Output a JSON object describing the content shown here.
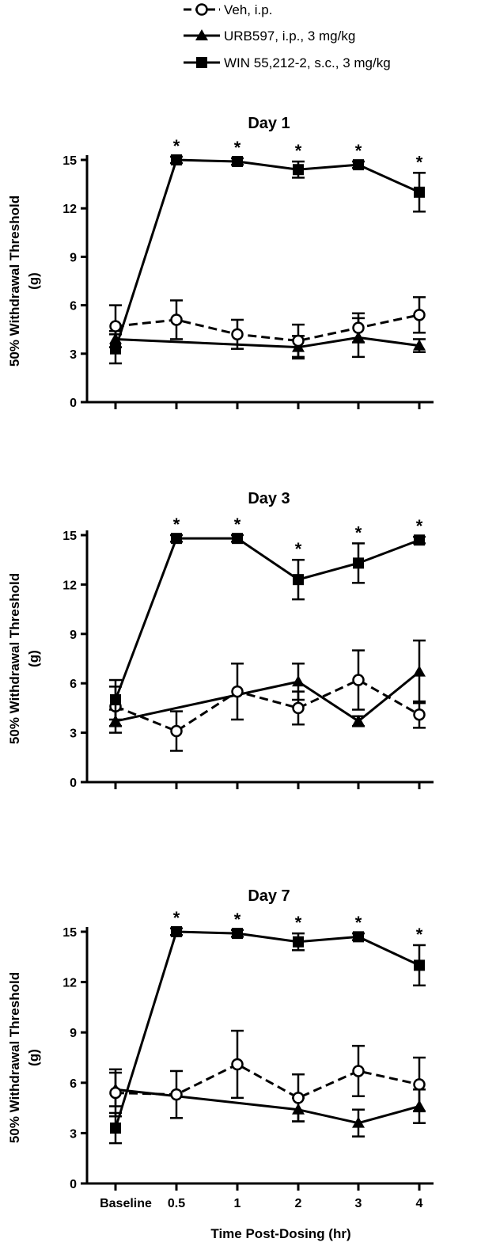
{
  "legend": [
    {
      "label": "Veh, i.p.",
      "marker": "open-circle",
      "dash": true
    },
    {
      "label": "URB597, i.p., 3 mg/kg",
      "marker": "filled-triangle",
      "dash": false
    },
    {
      "label": "WIN 55,212-2, s.c., 3 mg/kg",
      "marker": "filled-square",
      "dash": false
    }
  ],
  "ylabel_line1": "50% Withdrawal Threshold",
  "ylabel_line2": "(g)",
  "xlabel": "Time Post-Dosing (hr)",
  "chart_data": [
    {
      "type": "line",
      "title": "Day 1",
      "categories": [
        "Baseline",
        "0.5",
        "1",
        "2",
        "3",
        "4"
      ],
      "ylim": [
        0,
        15
      ],
      "yticks": [
        0,
        3,
        6,
        9,
        12,
        15
      ],
      "series": [
        {
          "name": "Veh, i.p.",
          "values": [
            4.7,
            5.1,
            4.2,
            3.8,
            4.6,
            5.4
          ],
          "errors": [
            1.3,
            1.2,
            0.9,
            1.0,
            0.9,
            1.1
          ]
        },
        {
          "name": "URB597, i.p., 3 mg/kg",
          "values": [
            3.9,
            null,
            null,
            3.4,
            4.0,
            3.5
          ],
          "errors": [
            0.5,
            null,
            null,
            0.7,
            1.2,
            0.4
          ]
        },
        {
          "name": "WIN 55,212-2, s.c., 3 mg/kg",
          "values": [
            3.3,
            15.0,
            14.9,
            14.4,
            14.7,
            13.0
          ],
          "errors": [
            0.9,
            0.2,
            0.2,
            0.5,
            0.2,
            1.2
          ]
        }
      ],
      "significance": [
        "",
        "*",
        "*",
        "*",
        "*",
        "*"
      ]
    },
    {
      "type": "line",
      "title": "Day 3",
      "categories": [
        "Baseline",
        "0.5",
        "1",
        "2",
        "3",
        "4"
      ],
      "ylim": [
        0,
        15
      ],
      "yticks": [
        0,
        3,
        6,
        9,
        12,
        15
      ],
      "series": [
        {
          "name": "Veh, i.p.",
          "values": [
            4.6,
            3.1,
            5.5,
            4.5,
            6.2,
            4.1
          ],
          "errors": [
            1.2,
            1.2,
            1.7,
            1.0,
            1.8,
            0.8
          ]
        },
        {
          "name": "URB597, i.p., 3 mg/kg",
          "values": [
            3.7,
            null,
            null,
            6.1,
            3.7,
            6.7
          ],
          "errors": [
            0.7,
            null,
            null,
            1.1,
            0.3,
            1.9
          ]
        },
        {
          "name": "WIN 55,212-2, s.c., 3 mg/kg",
          "values": [
            5.0,
            14.8,
            14.8,
            12.3,
            13.3,
            14.7
          ],
          "errors": [
            1.2,
            0.2,
            0.2,
            1.2,
            1.2,
            0.2
          ]
        }
      ],
      "significance": [
        "",
        "*",
        "*",
        "*",
        "*",
        "*"
      ]
    },
    {
      "type": "line",
      "title": "Day 7",
      "categories": [
        "Baseline",
        "0.5",
        "1",
        "2",
        "3",
        "4"
      ],
      "ylim": [
        0,
        15
      ],
      "yticks": [
        0,
        3,
        6,
        9,
        12,
        15
      ],
      "series": [
        {
          "name": "Veh, i.p.",
          "values": [
            5.4,
            5.3,
            7.1,
            5.1,
            6.7,
            5.9
          ],
          "errors": [
            1.4,
            1.4,
            2.0,
            1.4,
            1.5,
            1.6
          ]
        },
        {
          "name": "URB597, i.p., 3 mg/kg",
          "values": [
            5.6,
            null,
            null,
            4.4,
            3.6,
            4.6
          ],
          "errors": [
            1.0,
            null,
            null,
            0.7,
            0.8,
            1.0
          ]
        },
        {
          "name": "WIN 55,212-2, s.c., 3 mg/kg",
          "values": [
            3.3,
            15.0,
            14.9,
            14.4,
            14.7,
            13.0
          ],
          "errors": [
            0.9,
            0.2,
            0.2,
            0.5,
            0.2,
            1.2
          ]
        }
      ],
      "significance": [
        "",
        "*",
        "*",
        "*",
        "*",
        "*"
      ]
    }
  ]
}
